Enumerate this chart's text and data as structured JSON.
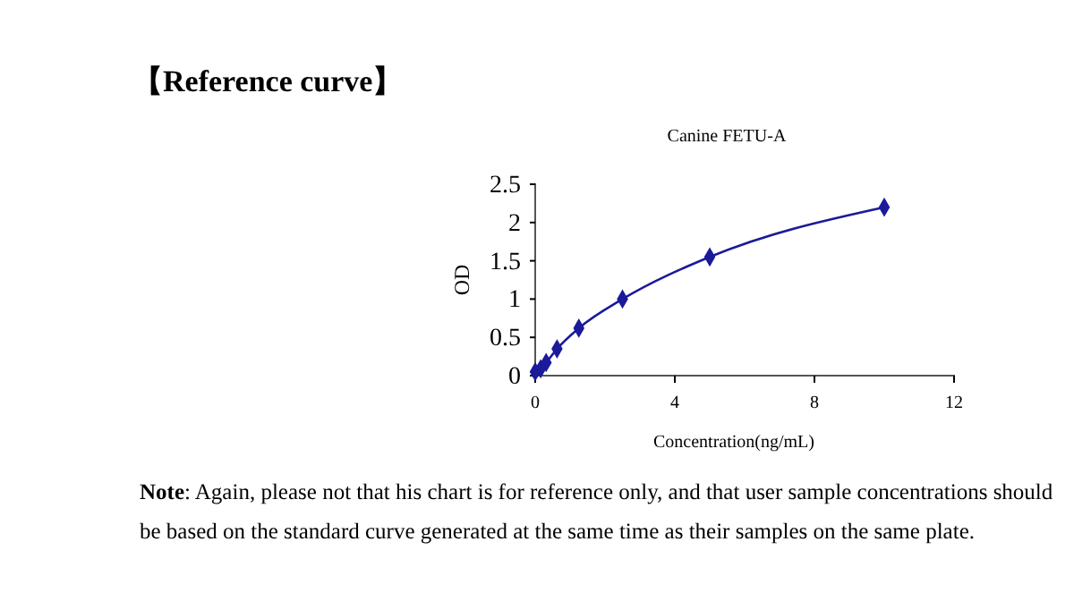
{
  "chart_data": {
    "type": "line",
    "title": "【Reference curve】",
    "subtitle": "Canine FETU-A",
    "xlabel": "Concentration(ng/mL)",
    "ylabel": "OD",
    "x": [
      0,
      0.156,
      0.313,
      0.625,
      1.25,
      2.5,
      5,
      10
    ],
    "series": [
      {
        "color": "#1a1a9a",
        "values": [
          0.05,
          0.09,
          0.17,
          0.35,
          0.62,
          1.0,
          1.55,
          2.2
        ]
      }
    ],
    "xlim": [
      0,
      12
    ],
    "xticks": [
      0,
      4,
      8,
      12
    ],
    "ylim": [
      0,
      2.5
    ],
    "yticks": [
      0,
      0.5,
      1,
      1.5,
      2,
      2.5
    ],
    "marker": "diamond",
    "line_style": "solid",
    "grid": false,
    "annotations": [
      "Note: Again, please not that his chart is for reference only, and that user sample concentrations should be based on the standard curve generated at the same time as their samples on the same plate."
    ]
  }
}
